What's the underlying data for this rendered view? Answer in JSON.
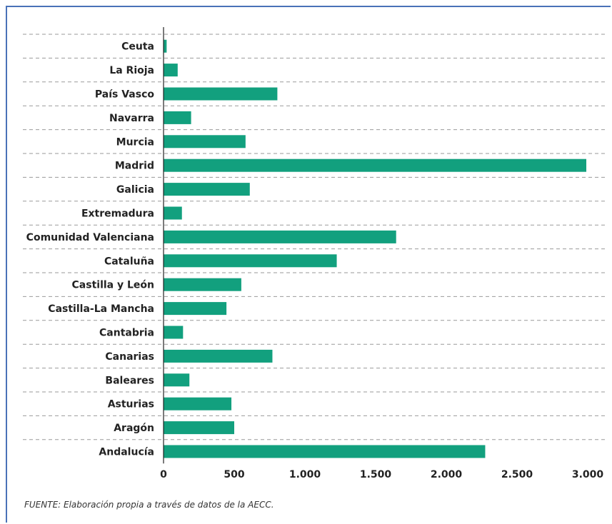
{
  "chart_data": {
    "type": "bar",
    "orientation": "horizontal",
    "categories": [
      "Ceuta",
      "La Rioja",
      "País Vasco",
      "Navarra",
      "Murcia",
      "Madrid",
      "Galicia",
      "Extremadura",
      "Comunidad Valenciana",
      "Cataluña",
      "Castilla y León",
      "Castilla-La Mancha",
      "Cantabria",
      "Canarias",
      "Baleares",
      "Asturias",
      "Aragón",
      "Andalucía"
    ],
    "values": [
      22,
      100,
      805,
      195,
      580,
      2990,
      610,
      130,
      1645,
      1225,
      550,
      445,
      138,
      770,
      183,
      480,
      500,
      2275
    ],
    "xlim": [
      0,
      3000
    ],
    "xticks": [
      0,
      500,
      1000,
      1500,
      2000,
      2500,
      3000
    ],
    "xtick_labels": [
      "0",
      "500",
      "1.000",
      "1.500",
      "2.000",
      "2.500",
      "3.000"
    ],
    "title": "",
    "xlabel": "",
    "ylabel": "",
    "grid": "horizontal dashed",
    "colors": {
      "bar": "#12a07e",
      "grid": "#9a9a9a",
      "axis": "#222222",
      "frame": "#4a72b8"
    }
  },
  "source_note": "FUENTE: Elaboración propia a través de datos de la AECC."
}
